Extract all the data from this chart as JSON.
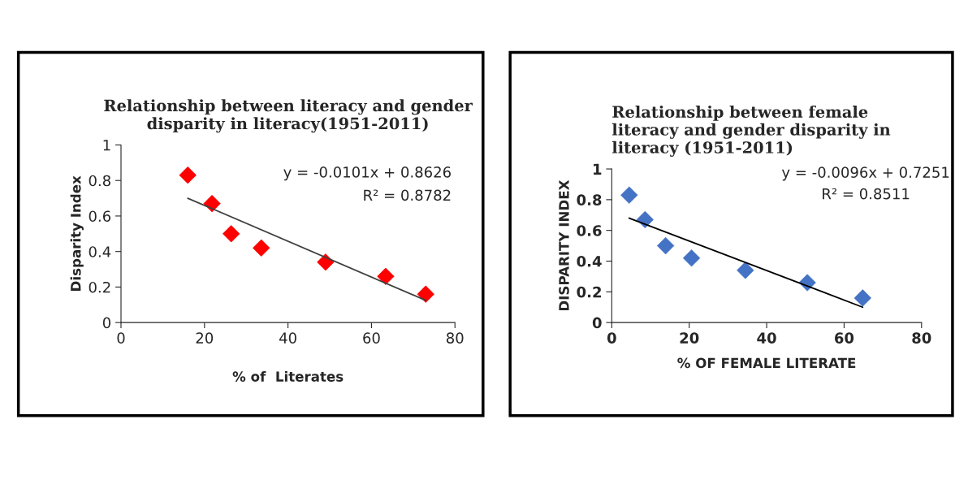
{
  "chart_data": [
    {
      "type": "scatter",
      "title": "Relationship between literacy and gender disparity in literacy(1951-2011)",
      "xlabel": "% of  Literates",
      "ylabel": "Disparity Index",
      "series": [
        {
          "color": "#ff0000",
          "x": [
            16,
            21.8,
            26.4,
            33.6,
            49,
            63.4,
            73
          ],
          "values": [
            0.83,
            0.67,
            0.5,
            0.42,
            0.34,
            0.26,
            0.16
          ],
          "marker": "diamond"
        },
        {
          "type": "line",
          "color": "#404040",
          "x": [
            16,
            73
          ],
          "values": [
            0.7,
            0.125
          ]
        }
      ],
      "annotations": [
        "y = -0.0101x + 0.8626",
        "R² = 0.8782"
      ],
      "xlim": [
        0,
        80
      ],
      "xticks": [
        0,
        20,
        40,
        60,
        80
      ],
      "ylim": [
        0,
        1
      ],
      "yticks": [
        0,
        0.2,
        0.4,
        0.6,
        0.8,
        1
      ],
      "grid": false,
      "legend": false
    },
    {
      "type": "scatter",
      "title": "Relationship between female literacy and gender disparity in literacy (1951-2011)",
      "xlabel": "% OF FEMALE LITERATE",
      "ylabel": "DISPARITY INDEX",
      "series": [
        {
          "color": "#4472c4",
          "x": [
            4.5,
            8.6,
            13.9,
            20.6,
            34.5,
            50.5,
            64.8
          ],
          "values": [
            0.83,
            0.67,
            0.5,
            0.42,
            0.34,
            0.26,
            0.16
          ],
          "marker": "diamond"
        },
        {
          "type": "line",
          "color": "#000000",
          "x": [
            4.5,
            64.8
          ],
          "values": [
            0.68,
            0.1
          ]
        }
      ],
      "annotations": [
        "y = -0.0096x + 0.7251",
        "R² = 0.8511"
      ],
      "xlim": [
        0,
        80
      ],
      "xticks": [
        0,
        20,
        40,
        60,
        80
      ],
      "ylim": [
        0,
        1
      ],
      "yticks": [
        0,
        0.2,
        0.4,
        0.6,
        0.8,
        1
      ],
      "grid": false,
      "legend": false
    }
  ]
}
